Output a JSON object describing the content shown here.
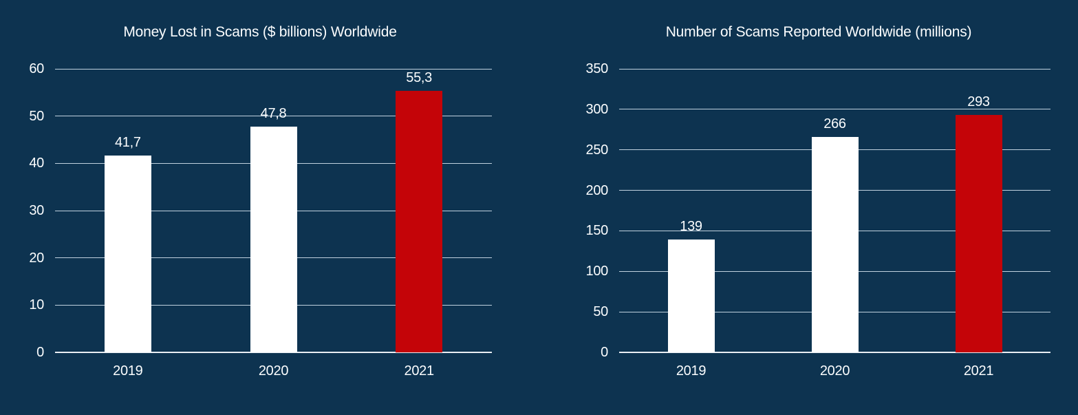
{
  "slide": {
    "background_color": "#0D3350",
    "text_color": "#FBFDFE",
    "gridline_color": "#C1D2DF",
    "axis_color": "#E8EEF3",
    "highlight_color": "#C40408",
    "bar_default_color": "#FFFFFF"
  },
  "chart_data": [
    {
      "type": "bar",
      "title": "Money Lost in Scams ($ billions) Worldwide",
      "categories": [
        "2019",
        "2020",
        "2021"
      ],
      "values": [
        41.7,
        47.8,
        55.3
      ],
      "value_labels": [
        "41,7",
        "47,8",
        "55,3"
      ],
      "bar_colors": [
        "#FFFFFF",
        "#FFFFFF",
        "#C40408"
      ],
      "xlabel": "",
      "ylabel": "",
      "ylim": [
        0,
        60
      ],
      "yticks": [
        0,
        10,
        20,
        30,
        40,
        50,
        60
      ],
      "ytick_labels": [
        "0",
        "10",
        "20",
        "30",
        "40",
        "50",
        "60"
      ],
      "grid": true,
      "legend": "none"
    },
    {
      "type": "bar",
      "title": "Number of Scams Reported Worldwide (millions)",
      "categories": [
        "2019",
        "2020",
        "2021"
      ],
      "values": [
        139,
        266,
        293
      ],
      "value_labels": [
        "139",
        "266",
        "293"
      ],
      "bar_colors": [
        "#FFFFFF",
        "#FFFFFF",
        "#C40408"
      ],
      "xlabel": "",
      "ylabel": "",
      "ylim": [
        0,
        350
      ],
      "yticks": [
        0,
        50,
        100,
        150,
        200,
        250,
        300,
        350
      ],
      "ytick_labels": [
        "0",
        "50",
        "100",
        "150",
        "200",
        "250",
        "300",
        "350"
      ],
      "grid": true,
      "legend": "none"
    }
  ]
}
